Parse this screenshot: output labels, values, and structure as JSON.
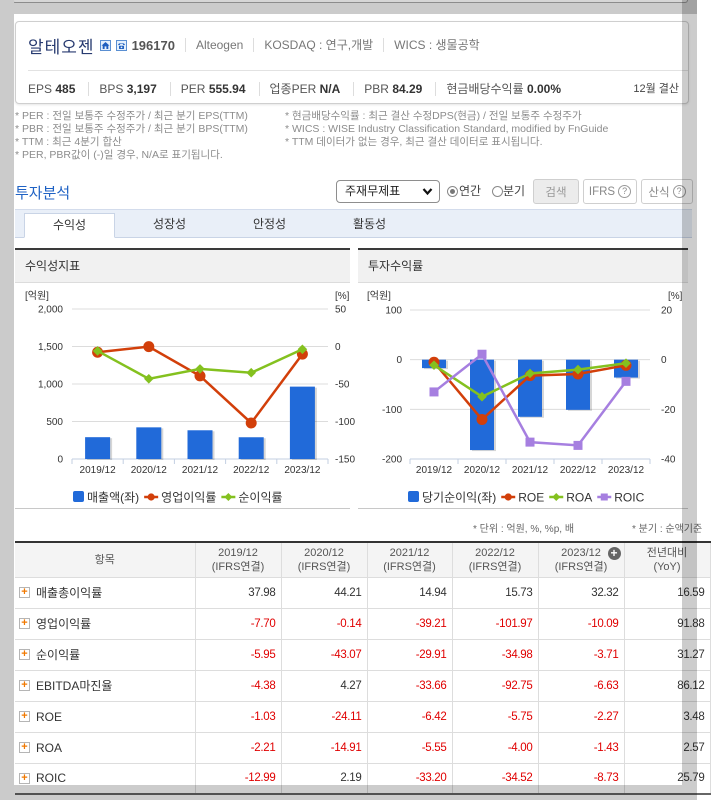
{
  "header": {
    "company_name": "알테오젠",
    "icons": [
      "home-icon",
      "phone-icon"
    ],
    "code": "196170",
    "english_name": "Alteogen",
    "market": "KOSDAQ : 연구,개발",
    "wics": "WICS : 생물공학",
    "metrics": [
      {
        "label": "EPS",
        "value": "485"
      },
      {
        "label": "BPS",
        "value": "3,197"
      },
      {
        "label": "PER",
        "value": "555.94"
      },
      {
        "label": "업종PER",
        "value": "N/A"
      },
      {
        "label": "PBR",
        "value": "84.29"
      },
      {
        "label": "현금배당수익률",
        "value": "0.00%"
      }
    ],
    "fiscal": "12월 결산"
  },
  "notes": {
    "left": [
      "* PER : 전일 보통주 수정주가 / 최근 분기 EPS(TTM)",
      "* PBR : 전일 보통주 수정주가 / 최근 분기 BPS(TTM)",
      "* TTM : 최근 4분기 합산",
      "* PER, PBR값이 (-)일 경우, N/A로 표기됩니다."
    ],
    "right": [
      "* 현금배당수익률 : 최근 결산 수정DPS(현금) / 전일 보통주 수정주가",
      "* WICS : WISE Industry Classification Standard, modified by FnGuide",
      "* TTM 데이터가 없는 경우, 최근 결산 데이터로 표시됩니다."
    ]
  },
  "section": {
    "title": "투자분석",
    "select_value": "주재무제표",
    "radios": [
      {
        "label": "연간",
        "checked": true
      },
      {
        "label": "분기",
        "checked": false
      }
    ],
    "search_label": "검색",
    "ifrs_label": "IFRS",
    "formula_label": "산식",
    "help_glyph": "?"
  },
  "tabs": [
    {
      "label": "수익성",
      "active": true
    },
    {
      "label": "성장성",
      "active": false
    },
    {
      "label": "안정성",
      "active": false
    },
    {
      "label": "활동성",
      "active": false
    }
  ],
  "panels": {
    "left_title": "수익성지표",
    "right_title": "투자수익률"
  },
  "chart_data": [
    {
      "type": "bar+line",
      "title": "수익성지표",
      "categories": [
        "2019/12",
        "2020/12",
        "2021/12",
        "2022/12",
        "2023/12"
      ],
      "y_left": {
        "label": "[억원]",
        "ticks": [
          2000,
          1500,
          1000,
          500,
          0
        ],
        "tick_labels": [
          "2,000",
          "1,500",
          "1,000",
          "500",
          "0"
        ],
        "range": [
          0,
          2000
        ]
      },
      "y_right": {
        "label": "[%]",
        "ticks": [
          50,
          0,
          -50,
          -100,
          -150
        ],
        "tick_labels": [
          "50",
          "0",
          "-50",
          "-100",
          "-150"
        ],
        "range": [
          -150,
          50
        ]
      },
      "series": [
        {
          "name": "매출액(좌)",
          "type": "bar",
          "axis": "left",
          "color": "#216ad9",
          "values": [
            291,
            422,
            383,
            290,
            965
          ]
        },
        {
          "name": "영업이익률",
          "type": "line",
          "axis": "right",
          "marker": "circle",
          "color": "#d23f0a",
          "values": [
            -7.7,
            -0.14,
            -39.21,
            -101.97,
            -10.09
          ]
        },
        {
          "name": "순이익률",
          "type": "line",
          "axis": "right",
          "marker": "diamond",
          "color": "#84c11f",
          "values": [
            -5.95,
            -43.07,
            -29.91,
            -34.98,
            -3.71
          ]
        }
      ],
      "grid": true,
      "legend_position": "bottom"
    },
    {
      "type": "bar+line",
      "title": "투자수익률",
      "categories": [
        "2019/12",
        "2020/12",
        "2021/12",
        "2022/12",
        "2023/12"
      ],
      "y_left": {
        "label": "[억원]",
        "ticks": [
          100,
          0,
          -100,
          -200
        ],
        "tick_labels": [
          "100",
          "0",
          "-100",
          "-200"
        ],
        "range": [
          -200,
          100
        ]
      },
      "y_right": {
        "label": "[%]",
        "ticks": [
          20,
          0,
          -20,
          -40
        ],
        "tick_labels": [
          "20",
          "0",
          "-20",
          "-40"
        ],
        "range": [
          -40,
          20
        ]
      },
      "series": [
        {
          "name": "당기순이익(좌)",
          "type": "bar",
          "axis": "left",
          "color": "#216ad9",
          "values": [
            -17,
            -182,
            -115,
            -101,
            -36
          ]
        },
        {
          "name": "ROE",
          "type": "line",
          "axis": "right",
          "marker": "circle",
          "color": "#d23f0a",
          "values": [
            -1.03,
            -24.11,
            -6.42,
            -5.75,
            -2.27
          ]
        },
        {
          "name": "ROA",
          "type": "line",
          "axis": "right",
          "marker": "diamond",
          "color": "#84c11f",
          "values": [
            -2.21,
            -14.91,
            -5.55,
            -4.0,
            -1.43
          ]
        },
        {
          "name": "ROIC",
          "type": "line",
          "axis": "right",
          "marker": "square",
          "color": "#a67fe0",
          "values": [
            -12.99,
            2.19,
            -33.2,
            -34.52,
            -8.73
          ]
        }
      ],
      "grid": true,
      "legend_position": "bottom"
    }
  ],
  "table": {
    "units_note": "* 단위 : 억원, %, %p, 배",
    "quarter_note": "* 분기 : 순액기준",
    "header": {
      "item": "항목",
      "periods": [
        {
          "date": "2019/12",
          "basis": "(IFRS연결)"
        },
        {
          "date": "2020/12",
          "basis": "(IFRS연결)"
        },
        {
          "date": "2021/12",
          "basis": "(IFRS연결)"
        },
        {
          "date": "2022/12",
          "basis": "(IFRS연결)"
        },
        {
          "date": "2023/12",
          "basis": "(IFRS연결)"
        }
      ],
      "yoy": [
        "전년대비",
        "(YoY)"
      ],
      "expand_glyph": "+"
    },
    "row_expand_glyph": "+",
    "rows": [
      {
        "label": "매출총이익률",
        "values": [
          "37.98",
          "44.21",
          "14.94",
          "15.73",
          "32.32",
          "16.59"
        ]
      },
      {
        "label": "영업이익률",
        "values": [
          "-7.70",
          "-0.14",
          "-39.21",
          "-101.97",
          "-10.09",
          "91.88"
        ]
      },
      {
        "label": "순이익률",
        "values": [
          "-5.95",
          "-43.07",
          "-29.91",
          "-34.98",
          "-3.71",
          "31.27"
        ]
      },
      {
        "label": "EBITDA마진율",
        "values": [
          "-4.38",
          "4.27",
          "-33.66",
          "-92.75",
          "-6.63",
          "86.12"
        ]
      },
      {
        "label": "ROE",
        "values": [
          "-1.03",
          "-24.11",
          "-6.42",
          "-5.75",
          "-2.27",
          "3.48"
        ]
      },
      {
        "label": "ROA",
        "values": [
          "-2.21",
          "-14.91",
          "-5.55",
          "-4.00",
          "-1.43",
          "2.57"
        ]
      },
      {
        "label": "ROIC",
        "values": [
          "-12.99",
          "2.19",
          "-33.20",
          "-34.52",
          "-8.73",
          "25.79"
        ]
      }
    ]
  }
}
